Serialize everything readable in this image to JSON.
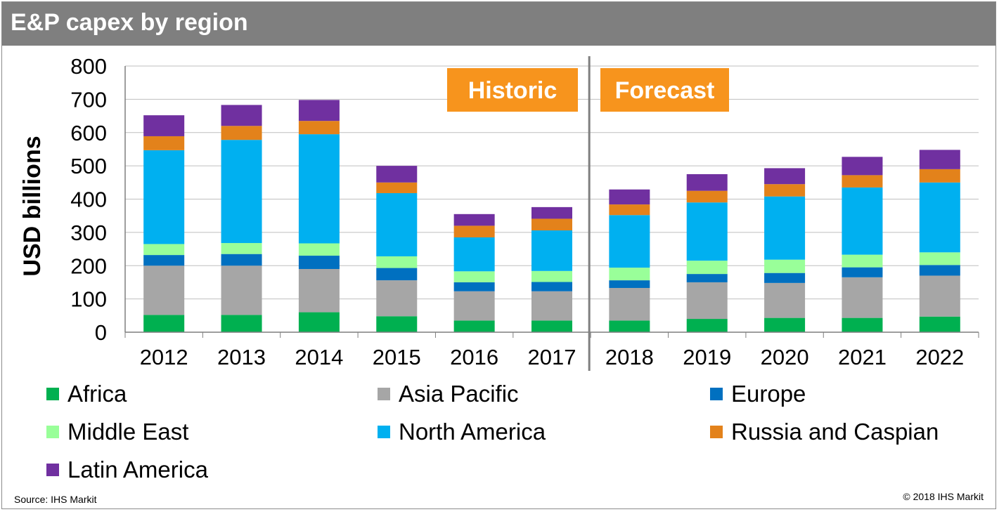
{
  "header": {
    "title": "E&P capex by region"
  },
  "footer": {
    "source": "Source:  IHS Markit",
    "copyright": "© 2018  IHS Markit"
  },
  "colors": {
    "Africa": "#00b050",
    "Asia Pacific": "#a6a6a6",
    "Europe": "#0070c0",
    "Middle East": "#99ff99",
    "North America": "#00b0f0",
    "Russia and Caspian": "#e3821b",
    "Latin America": "#7030a0",
    "annotation": "#f7941d"
  },
  "chart_data": {
    "type": "bar",
    "stacked": true,
    "ylabel": "USD billions",
    "ylim": [
      0,
      800
    ],
    "yticks": [
      0,
      100,
      200,
      300,
      400,
      500,
      600,
      700,
      800
    ],
    "grid": true,
    "legend_position": "bottom",
    "categories": [
      "2012",
      "2013",
      "2014",
      "2015",
      "2016",
      "2017",
      "2018",
      "2019",
      "2020",
      "2021",
      "2022"
    ],
    "annotations": [
      "Historic",
      "Forecast"
    ],
    "series": [
      {
        "name": "Africa",
        "values": [
          52,
          52,
          60,
          48,
          35,
          35,
          35,
          40,
          43,
          43,
          47
        ]
      },
      {
        "name": "Asia Pacific",
        "values": [
          148,
          148,
          130,
          108,
          88,
          88,
          98,
          110,
          105,
          122,
          123
        ]
      },
      {
        "name": "Europe",
        "values": [
          32,
          35,
          40,
          37,
          27,
          28,
          23,
          25,
          30,
          30,
          32
        ]
      },
      {
        "name": "Middle East",
        "values": [
          33,
          33,
          37,
          35,
          33,
          33,
          38,
          40,
          40,
          38,
          38
        ]
      },
      {
        "name": "North America",
        "values": [
          282,
          310,
          328,
          190,
          102,
          122,
          158,
          175,
          190,
          202,
          210
        ]
      },
      {
        "name": "Russia and Caspian",
        "values": [
          42,
          42,
          40,
          32,
          35,
          35,
          32,
          35,
          37,
          37,
          40
        ]
      },
      {
        "name": "Latin America",
        "values": [
          63,
          63,
          63,
          50,
          35,
          35,
          45,
          50,
          48,
          55,
          58
        ]
      }
    ]
  }
}
